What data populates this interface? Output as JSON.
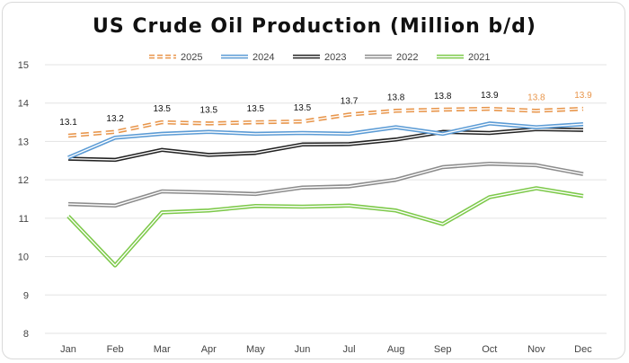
{
  "chart_data": {
    "type": "line",
    "title": "US Crude Oil Production (Million b/d)",
    "xlabel": "",
    "ylabel": "",
    "categories": [
      "Jan",
      "Feb",
      "Mar",
      "Apr",
      "May",
      "Jun",
      "Jul",
      "Aug",
      "Sep",
      "Oct",
      "Nov",
      "Dec"
    ],
    "ylim": [
      8,
      15
    ],
    "yticks": [
      8,
      9,
      10,
      11,
      12,
      13,
      14,
      15
    ],
    "grid": "horizontal",
    "legend_position": "top",
    "series": [
      {
        "name": "2025",
        "color": "#e8954a",
        "style": "dashed-double",
        "values": [
          13.15,
          13.25,
          13.5,
          13.47,
          13.5,
          13.52,
          13.7,
          13.8,
          13.83,
          13.85,
          13.8,
          13.85
        ],
        "labels": [
          "13.1",
          "13.2",
          "13.5",
          "13.5",
          "13.5",
          "13.5",
          "13.7",
          "13.8",
          "13.8",
          "13.9",
          "13.8",
          "13.9"
        ],
        "label_colors": [
          "#111",
          "#111",
          "#111",
          "#111",
          "#111",
          "#111",
          "#111",
          "#111",
          "#111",
          "#111",
          "#e8954a",
          "#e8954a"
        ]
      },
      {
        "name": "2024",
        "color": "#5b9bd5",
        "style": "double",
        "values": [
          12.58,
          13.1,
          13.2,
          13.25,
          13.2,
          13.22,
          13.2,
          13.37,
          13.2,
          13.47,
          13.37,
          13.45
        ]
      },
      {
        "name": "2023",
        "color": "#222222",
        "style": "double",
        "values": [
          12.55,
          12.52,
          12.78,
          12.65,
          12.7,
          12.92,
          12.93,
          13.05,
          13.25,
          13.22,
          13.32,
          13.3
        ]
      },
      {
        "name": "2022",
        "color": "#8c8c8c",
        "style": "double",
        "values": [
          11.37,
          11.33,
          11.7,
          11.67,
          11.63,
          11.8,
          11.83,
          12.0,
          12.33,
          12.42,
          12.38,
          12.15
        ]
      },
      {
        "name": "2021",
        "color": "#7dc94a",
        "style": "double",
        "values": [
          11.05,
          9.77,
          11.15,
          11.2,
          11.32,
          11.3,
          11.33,
          11.2,
          10.85,
          11.55,
          11.78,
          11.58
        ]
      }
    ]
  }
}
